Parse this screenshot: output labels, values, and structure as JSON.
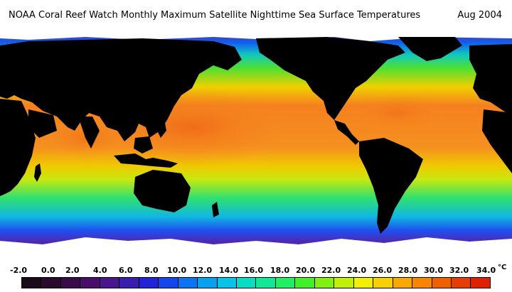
{
  "header": {
    "title": "NOAA Coral Reef Watch Monthly Maximum Satellite Nighttime Sea Surface Temperatures",
    "date": "Aug 2004"
  },
  "legend": {
    "unit": "°C",
    "tick_labels": [
      "-2.0",
      "0.0",
      "2.0",
      "4.0",
      "6.0",
      "8.0",
      "10.0",
      "12.0",
      "14.0",
      "16.0",
      "18.0",
      "20.0",
      "22.0",
      "24.0",
      "26.0",
      "28.0",
      "30.0",
      "32.0",
      "34.0"
    ],
    "swatch_colors": [
      "#1a0a1a",
      "#2a0a2e",
      "#3a0b4a",
      "#4a0e6a",
      "#4a1690",
      "#3a1cb0",
      "#2222d8",
      "#1446f0",
      "#0a74f4",
      "#08a0f0",
      "#06c4e8",
      "#08dcc4",
      "#10e898",
      "#20f060",
      "#40f028",
      "#80f010",
      "#c0f008",
      "#f0f000",
      "#f8d000",
      "#f8a800",
      "#f88400",
      "#f06000",
      "#e83c00",
      "#e02000"
    ]
  },
  "map": {
    "land_color": "#000000",
    "ice_color": "#ffffff",
    "sst_band_colors": {
      "tropical": "#f5801f",
      "subtropical": "#f0d000",
      "temperate": "#50e030",
      "cool": "#10c8c0",
      "cold": "#1060f0",
      "polar": "#5a2aa8"
    }
  }
}
